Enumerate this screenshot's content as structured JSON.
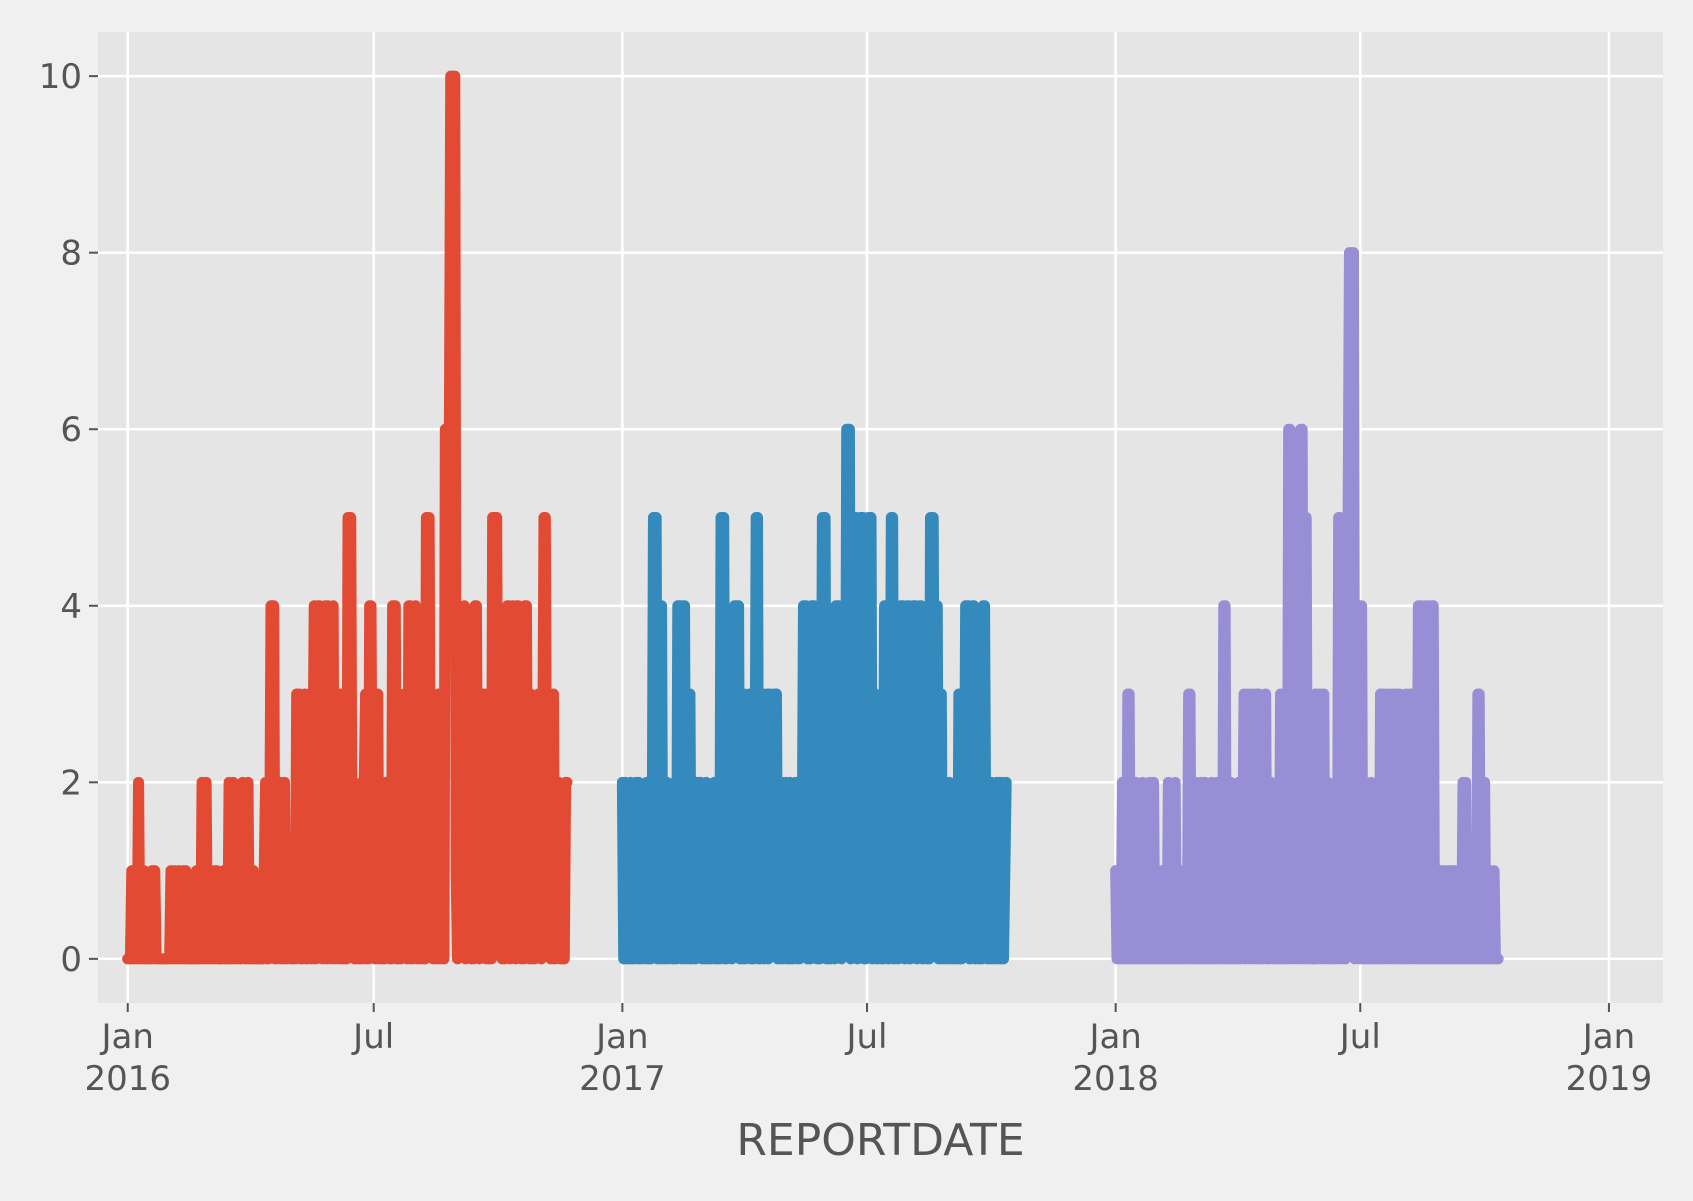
{
  "chart_data": {
    "type": "line",
    "title": "",
    "xlabel": "REPORTDATE",
    "ylabel": "",
    "xlim": [
      "2015-12-10",
      "2019-02-10"
    ],
    "ylim": [
      -0.5,
      10.5
    ],
    "grid": true,
    "style": "ggplot",
    "y_ticks": [
      0,
      2,
      4,
      6,
      8,
      10
    ],
    "x_ticks": [
      {
        "date": "2016-01-01",
        "lines": [
          "Jan",
          "2016"
        ]
      },
      {
        "date": "2016-07-01",
        "lines": [
          "Jul"
        ]
      },
      {
        "date": "2017-01-01",
        "lines": [
          "Jan",
          "2017"
        ]
      },
      {
        "date": "2017-07-01",
        "lines": [
          "Jul"
        ]
      },
      {
        "date": "2018-01-01",
        "lines": [
          "Jan",
          "2018"
        ]
      },
      {
        "date": "2018-07-01",
        "lines": [
          "Jul"
        ]
      },
      {
        "date": "2019-01-01",
        "lines": [
          "Jan",
          "2019"
        ]
      }
    ],
    "series": [
      {
        "color": "#E24A33",
        "start_date": "2016-01-01",
        "step_days": 1,
        "values": [
          0,
          0,
          0,
          1,
          0,
          0,
          1,
          0,
          2,
          0,
          0,
          0,
          1,
          0,
          0,
          0,
          0,
          0,
          1,
          0,
          1,
          0,
          0,
          0,
          0,
          0,
          0,
          0,
          0,
          0,
          0,
          0,
          1,
          0,
          0,
          1,
          0,
          0,
          1,
          0,
          0,
          1,
          0,
          1,
          0,
          0,
          0,
          0,
          0,
          0,
          0,
          1,
          0,
          0,
          0,
          2,
          0,
          0,
          2,
          0,
          1,
          0,
          0,
          0,
          1,
          0,
          1,
          0,
          0,
          0,
          0,
          1,
          0,
          0,
          0,
          2,
          0,
          0,
          2,
          0,
          0,
          0,
          1,
          0,
          0,
          2,
          1,
          0,
          0,
          2,
          0,
          0,
          0,
          1,
          0,
          0,
          0,
          0,
          0,
          0,
          0,
          1,
          2,
          0,
          0,
          1,
          4,
          4,
          4,
          0,
          0,
          2,
          1,
          0,
          2,
          0,
          2,
          0,
          0,
          1,
          1,
          0,
          0,
          1,
          0,
          3,
          2,
          3,
          0,
          0,
          2,
          3,
          0,
          0,
          1,
          3,
          0,
          2,
          4,
          0,
          3,
          4,
          4,
          1,
          0,
          3,
          4,
          0,
          4,
          1,
          0,
          1,
          4,
          0,
          2,
          3,
          0,
          3,
          0,
          0,
          2,
          0,
          0,
          5,
          5,
          5,
          1,
          2,
          0,
          0,
          1,
          0,
          0,
          2,
          0,
          2,
          3,
          0,
          0,
          4,
          4,
          1,
          2,
          0,
          3,
          3,
          0,
          2,
          0,
          0,
          0,
          2,
          2,
          2,
          0,
          0,
          4,
          4,
          4,
          0,
          0,
          3,
          0,
          1,
          2,
          3,
          3,
          0,
          4,
          4,
          0,
          0,
          1,
          4,
          0,
          3,
          3,
          0,
          2,
          0,
          0,
          5,
          5,
          5,
          1,
          2,
          0,
          2,
          0,
          1,
          3,
          0,
          2,
          1,
          0,
          6,
          6,
          6,
          6,
          10,
          10,
          10,
          10,
          1,
          0,
          3,
          2,
          1,
          3,
          4,
          0,
          2,
          3,
          1,
          0,
          3,
          0,
          4,
          4,
          1,
          0,
          2,
          2,
          3,
          1,
          0,
          3,
          0,
          2,
          0,
          5,
          5,
          5,
          5,
          1,
          2,
          2,
          0,
          1,
          0,
          3,
          4,
          4,
          0,
          2,
          4,
          1,
          0,
          4,
          4,
          1,
          0,
          3,
          0,
          4,
          4,
          1,
          0,
          3,
          0,
          0,
          0,
          1,
          2,
          3,
          3,
          0,
          2,
          5,
          5,
          1,
          1,
          3,
          0,
          2,
          3,
          0,
          2,
          2,
          2,
          0,
          0,
          0,
          0,
          2,
          2
        ]
      },
      {
        "color": "#348ABD",
        "start_date": "2017-01-01",
        "step_days": 1,
        "values": [
          2,
          0,
          2,
          0,
          0,
          0,
          2,
          0,
          0,
          1,
          2,
          0,
          2,
          0,
          0,
          1,
          1,
          0,
          2,
          0,
          0,
          0,
          1,
          5,
          5,
          5,
          0,
          1,
          0,
          4,
          0,
          1,
          0,
          2,
          0,
          1,
          1,
          0,
          0,
          2,
          0,
          4,
          4,
          4,
          0,
          4,
          4,
          0,
          1,
          0,
          3,
          0,
          1,
          2,
          0,
          2,
          1,
          2,
          2,
          0,
          1,
          0,
          2,
          0,
          0,
          1,
          0,
          1,
          2,
          0,
          0,
          2,
          0,
          5,
          5,
          5,
          0,
          0,
          2,
          1,
          3,
          0,
          2,
          4,
          4,
          4,
          4,
          0,
          2,
          0,
          3,
          0,
          1,
          2,
          3,
          0,
          2,
          0,
          1,
          5,
          5,
          0,
          0,
          2,
          3,
          0,
          1,
          3,
          0,
          3,
          2,
          1,
          3,
          3,
          3,
          0,
          1,
          0,
          2,
          0,
          1,
          2,
          0,
          0,
          2,
          0,
          0,
          1,
          2,
          0,
          2,
          0,
          2,
          1,
          4,
          4,
          4,
          0,
          2,
          0,
          4,
          4,
          4,
          1,
          0,
          2,
          0,
          1,
          5,
          5,
          5,
          0,
          0,
          2,
          0,
          1,
          2,
          0,
          4,
          4,
          4,
          1,
          0,
          3,
          2,
          1,
          6,
          6,
          6,
          0,
          1,
          5,
          5,
          5,
          0,
          1,
          5,
          5,
          5,
          0,
          0,
          2,
          5,
          1,
          5,
          0,
          3,
          3,
          0,
          0,
          1,
          2,
          0,
          0,
          4,
          4,
          4,
          0,
          1,
          5,
          5,
          0,
          2,
          4,
          0,
          1,
          4,
          4,
          4,
          0,
          2,
          4,
          4,
          0,
          1,
          4,
          4,
          4,
          0,
          3,
          4,
          4,
          0,
          1,
          2,
          0,
          4,
          0,
          5,
          5,
          5,
          1,
          4,
          4,
          0,
          2,
          3,
          0,
          2,
          0,
          1,
          0,
          2,
          0,
          1,
          0,
          0,
          2,
          0,
          3,
          0,
          0,
          2,
          1,
          4,
          4,
          4,
          0,
          2,
          4,
          4,
          0,
          1,
          3,
          0,
          2,
          0,
          4,
          4,
          1,
          0,
          2,
          0,
          2,
          0,
          1,
          0,
          2,
          0,
          2,
          0,
          2,
          0,
          1,
          2
        ]
      },
      {
        "color": "#988ED5",
        "start_date": "2018-01-01",
        "step_days": 1,
        "values": [
          1,
          0,
          1,
          0,
          0,
          2,
          0,
          1,
          0,
          3,
          3,
          0,
          1,
          0,
          0,
          2,
          0,
          1,
          0,
          0,
          2,
          0,
          1,
          0,
          0,
          2,
          0,
          0,
          2,
          0,
          1,
          0,
          0,
          0,
          1,
          0,
          0,
          1,
          0,
          2,
          0,
          1,
          0,
          0,
          2,
          0,
          1,
          0,
          0,
          0,
          1,
          0,
          1,
          0,
          3,
          3,
          0,
          1,
          0,
          2,
          0,
          1,
          0,
          2,
          0,
          0,
          2,
          0,
          1,
          0,
          0,
          2,
          0,
          1,
          0,
          2,
          2,
          0,
          1,
          0,
          4,
          4,
          0,
          1,
          0,
          2,
          0,
          1,
          0,
          0,
          0,
          2,
          0,
          0,
          1,
          3,
          0,
          1,
          3,
          0,
          2,
          3,
          0,
          1,
          3,
          0,
          3,
          0,
          2,
          0,
          1,
          3,
          0,
          0,
          1,
          2,
          0,
          1,
          0,
          0,
          2,
          0,
          3,
          0,
          1,
          0,
          2,
          0,
          6,
          6,
          0,
          1,
          4,
          0,
          2,
          4,
          0,
          6,
          6,
          0,
          2,
          5,
          0,
          1,
          0,
          2,
          0,
          0,
          3,
          0,
          1,
          3,
          0,
          2,
          3,
          0,
          1,
          2,
          0,
          0,
          0,
          1,
          0,
          2,
          0,
          5,
          5,
          0,
          1,
          5,
          0,
          2,
          5,
          8,
          8,
          8,
          8,
          0,
          1,
          4,
          0,
          2,
          4,
          0,
          2,
          0,
          0,
          1,
          0,
          2,
          0,
          0,
          1,
          0,
          1,
          0,
          3,
          0,
          3,
          0,
          1,
          3,
          0,
          2,
          3,
          0,
          1,
          3,
          0,
          1,
          3,
          0,
          1,
          0,
          0,
          3,
          0,
          2,
          3,
          0,
          1,
          2,
          0,
          1,
          4,
          0,
          4,
          0,
          2,
          4,
          0,
          1,
          4,
          0,
          2,
          4,
          0,
          1,
          0,
          0,
          1,
          0,
          1,
          0,
          1,
          0,
          0,
          1,
          0,
          1,
          0,
          1,
          0,
          1,
          0,
          1,
          0,
          2,
          0,
          2,
          0,
          1,
          0,
          1,
          0,
          0,
          1,
          0,
          3,
          3,
          0,
          1,
          0,
          2,
          0,
          1,
          0,
          1,
          0,
          0,
          1,
          0,
          0,
          0
        ]
      }
    ]
  }
}
